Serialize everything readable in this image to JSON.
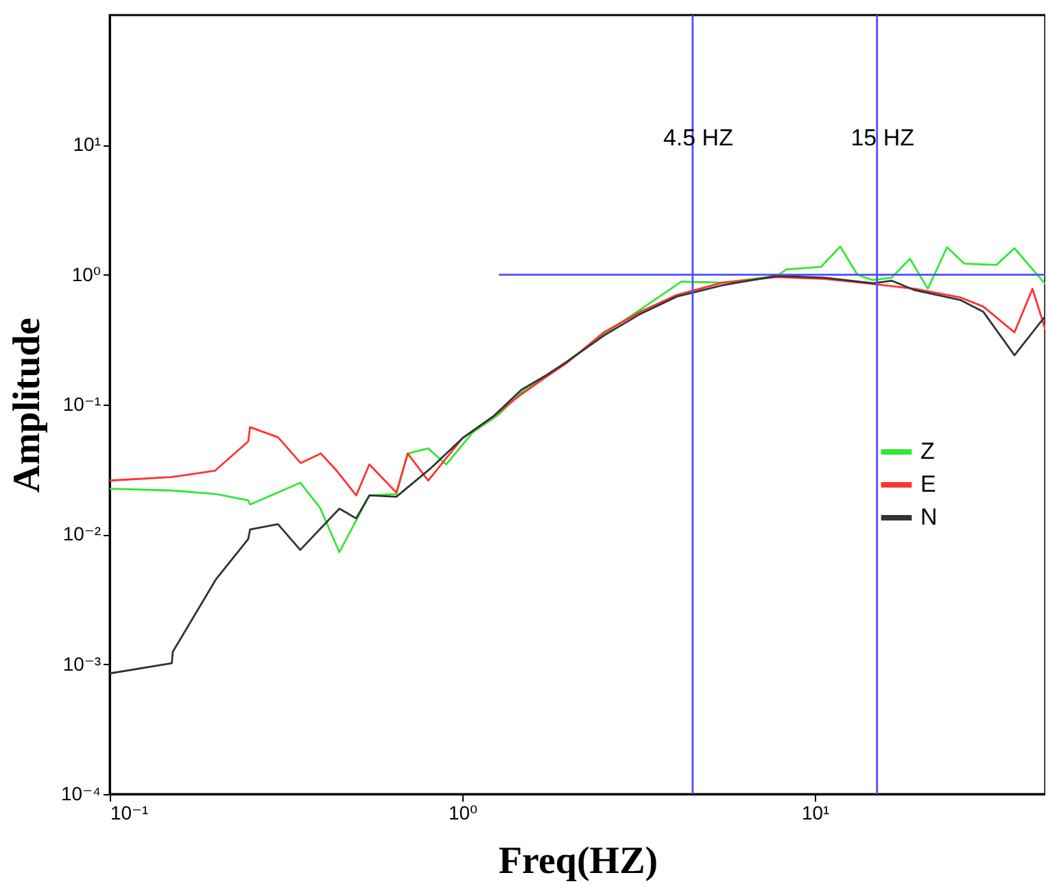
{
  "chart_data": {
    "type": "line",
    "xlabel": "Freq(HZ)",
    "ylabel": "Amplitude",
    "log": "xy",
    "grid": false,
    "legend": "right",
    "xlim": [
      0.1,
      45
    ],
    "xticks": [
      {
        "value": 0.1,
        "label": "10⁻¹"
      },
      {
        "value": 1,
        "label": "10⁰"
      },
      {
        "value": 10,
        "label": "10¹"
      }
    ],
    "ylim": [
      0.0001,
      100
    ],
    "yticks": [
      {
        "value": 0.0001,
        "label": "10⁻⁴"
      },
      {
        "value": 0.001,
        "label": "10⁻³"
      },
      {
        "value": 0.01,
        "label": "10⁻²"
      },
      {
        "value": 0.1,
        "label": "10⁻¹"
      },
      {
        "value": 1,
        "label": "10⁰"
      },
      {
        "value": 10,
        "label": "10¹"
      }
    ],
    "ref_lines": [
      {
        "axis": "x",
        "value": 4.5,
        "label": "4.5 HZ",
        "color": "#4d4dff"
      },
      {
        "axis": "x",
        "value": 15,
        "label": "15 HZ",
        "color": "#4d4dff"
      }
    ],
    "series": [
      {
        "name": "Z",
        "color": "#33e833",
        "x": [
          0.1,
          0.15,
          0.2,
          0.247,
          0.25,
          0.347,
          0.395,
          0.448,
          0.545,
          0.65,
          0.7,
          0.8,
          0.9,
          1.07,
          1.27,
          1.47,
          1.71,
          1.98,
          2.52,
          3.2,
          4.18,
          5.47,
          7.8,
          8.3,
          10.4,
          11.8,
          13.2,
          14.6,
          16.5,
          18.6,
          20.9,
          23.7,
          26.5,
          32.7,
          36.8,
          45
        ],
        "values": [
          0.0225,
          0.0218,
          0.0205,
          0.0183,
          0.017,
          0.025,
          0.016,
          0.0073,
          0.02,
          0.0205,
          0.042,
          0.046,
          0.0346,
          0.061,
          0.084,
          0.124,
          0.161,
          0.214,
          0.35,
          0.54,
          0.885,
          0.87,
          0.98,
          1.1,
          1.15,
          1.65,
          1.0,
          0.91,
          0.95,
          1.33,
          0.78,
          1.63,
          1.22,
          1.19,
          1.6,
          0.85
        ]
      },
      {
        "name": "E",
        "color": "#ff3333",
        "x": [
          0.1,
          0.15,
          0.199,
          0.247,
          0.25,
          0.3,
          0.348,
          0.397,
          0.44,
          0.5,
          0.545,
          0.65,
          0.7,
          0.8,
          1.0,
          1.23,
          1.47,
          1.71,
          1.98,
          2.52,
          3.2,
          4.06,
          5.47,
          7.8,
          10.6,
          14.6,
          19.2,
          25.8,
          30,
          36.8,
          41.4,
          45
        ],
        "values": [
          0.026,
          0.0277,
          0.031,
          0.052,
          0.067,
          0.056,
          0.0355,
          0.042,
          0.031,
          0.02,
          0.0346,
          0.021,
          0.042,
          0.026,
          0.055,
          0.082,
          0.12,
          0.16,
          0.21,
          0.36,
          0.52,
          0.7,
          0.87,
          0.96,
          0.93,
          0.85,
          0.78,
          0.67,
          0.57,
          0.36,
          0.78,
          0.38
        ]
      },
      {
        "name": "N",
        "color": "#333333",
        "x": [
          0.1,
          0.15,
          0.151,
          0.2,
          0.247,
          0.25,
          0.3,
          0.347,
          0.448,
          0.5,
          0.545,
          0.65,
          0.81,
          1.0,
          1.23,
          1.47,
          1.71,
          1.98,
          2.52,
          3.2,
          4.06,
          5.47,
          7.8,
          10.6,
          14.6,
          16.5,
          19.2,
          25.8,
          30,
          36.8,
          45
        ],
        "values": [
          0.00085,
          0.00102,
          0.00125,
          0.0045,
          0.0092,
          0.0109,
          0.012,
          0.0076,
          0.0158,
          0.0133,
          0.02,
          0.0195,
          0.032,
          0.055,
          0.082,
          0.13,
          0.165,
          0.214,
          0.34,
          0.5,
          0.68,
          0.83,
          0.98,
          0.95,
          0.86,
          0.9,
          0.76,
          0.64,
          0.52,
          0.24,
          0.48
        ]
      },
      {
        "color": "#4d4dff",
        "x": [
          1.27,
          45
        ],
        "values": [
          1,
          1
        ]
      }
    ]
  }
}
